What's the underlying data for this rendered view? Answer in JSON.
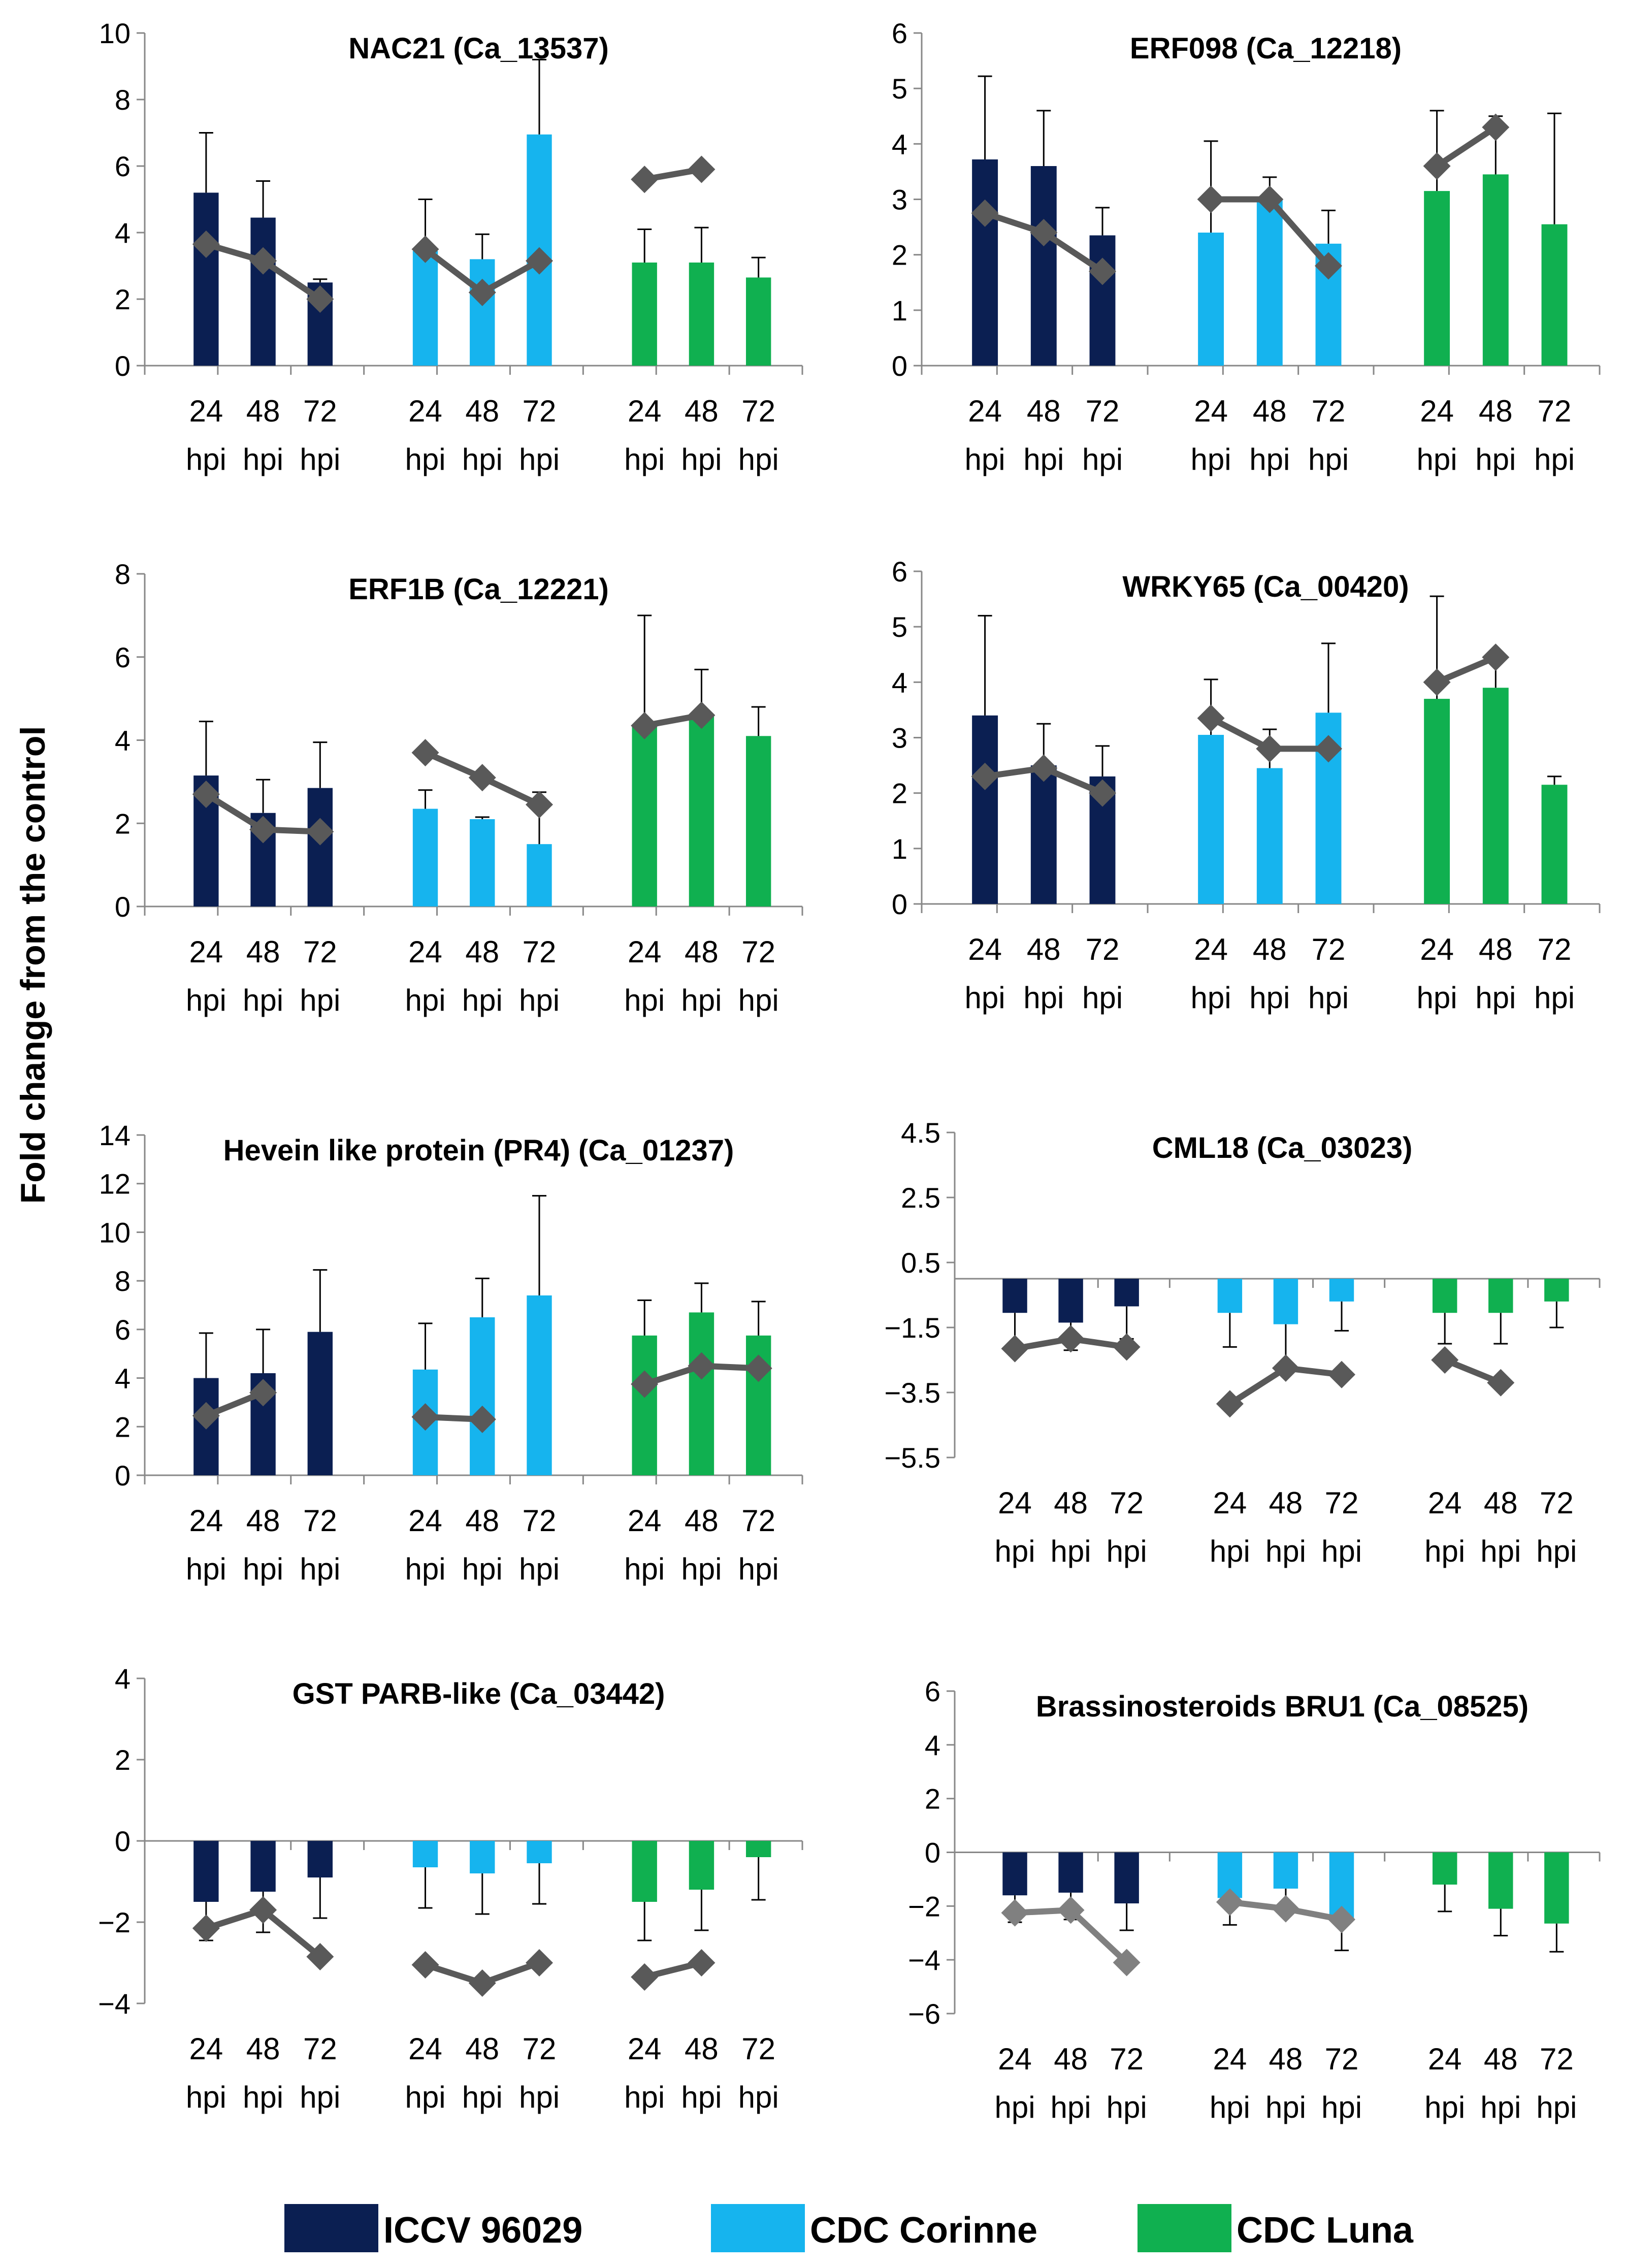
{
  "figure": {
    "ylabel": "Fold change from the control",
    "x_tick_top": "24|48|72",
    "x_tick_unit": "hpi",
    "colors": {
      "ICCV 96029": "#0b1f52",
      "CDC Corinne": "#16b4ee",
      "CDC Luna": "#10b050",
      "line": "#595959",
      "line_light": "#808080",
      "axis": "#888888"
    }
  },
  "legend": [
    {
      "name": "ICCV 96029",
      "color": "#0b1f52"
    },
    {
      "name": "CDC Corinne",
      "color": "#16b4ee"
    },
    {
      "name": "CDC Luna",
      "color": "#10b050"
    }
  ],
  "chart_data": [
    {
      "type": "bar",
      "title": "NAC21 (Ca_13537)",
      "yticks": [
        0,
        2,
        4,
        6,
        8,
        10
      ],
      "ylim": [
        0,
        10
      ],
      "categories": [
        "24 hpi",
        "48 hpi",
        "72 hpi"
      ],
      "groups": [
        "ICCV 96029",
        "CDC Corinne",
        "CDC Luna"
      ],
      "bars": [
        [
          5.2,
          4.45,
          2.5
        ],
        [
          3.45,
          3.2,
          6.95
        ],
        [
          3.1,
          3.1,
          2.65
        ]
      ],
      "errors": [
        [
          1.8,
          1.1,
          0.1
        ],
        [
          1.55,
          0.75,
          2.25
        ],
        [
          1.0,
          1.05,
          0.6
        ]
      ],
      "line": [
        [
          3.65,
          3.15,
          2.0
        ],
        [
          3.5,
          2.2,
          3.15
        ],
        [
          5.6,
          5.9,
          null
        ]
      ]
    },
    {
      "type": "bar",
      "title": "ERF098 (Ca_12218)",
      "yticks": [
        0,
        1,
        2,
        3,
        4,
        5,
        6
      ],
      "ylim": [
        0,
        6
      ],
      "categories": [
        "24 hpi",
        "48 hpi",
        "72 hpi"
      ],
      "groups": [
        "ICCV 96029",
        "CDC Corinne",
        "CDC Luna"
      ],
      "bars": [
        [
          3.72,
          3.6,
          2.35
        ],
        [
          2.4,
          3.0,
          2.2
        ],
        [
          3.15,
          3.45,
          2.55
        ]
      ],
      "errors": [
        [
          1.5,
          1.0,
          0.5
        ],
        [
          1.65,
          0.4,
          0.6
        ],
        [
          1.45,
          1.05,
          2.0
        ]
      ],
      "line": [
        [
          2.75,
          2.4,
          1.7
        ],
        [
          3.0,
          3.0,
          1.8
        ],
        [
          3.6,
          4.3,
          null
        ]
      ]
    },
    {
      "type": "bar",
      "title": "ERF1B (Ca_12221)",
      "yticks": [
        0,
        2,
        4,
        6,
        8
      ],
      "ylim": [
        0,
        8
      ],
      "categories": [
        "24 hpi",
        "48 hpi",
        "72 hpi"
      ],
      "groups": [
        "ICCV 96029",
        "CDC Corinne",
        "CDC Luna"
      ],
      "bars": [
        [
          3.15,
          2.25,
          2.85
        ],
        [
          2.35,
          2.1,
          1.5
        ],
        [
          4.35,
          4.6,
          4.1
        ]
      ],
      "errors": [
        [
          1.3,
          0.8,
          1.1
        ],
        [
          0.45,
          0.05,
          1.25
        ],
        [
          2.65,
          1.1,
          0.7
        ]
      ],
      "line": [
        [
          2.7,
          1.85,
          1.8
        ],
        [
          3.7,
          3.1,
          2.45
        ],
        [
          4.35,
          4.6,
          null
        ]
      ]
    },
    {
      "type": "bar",
      "title": "WRKY65 (Ca_00420)",
      "yticks": [
        0,
        1,
        2,
        3,
        4,
        5,
        6
      ],
      "ylim": [
        0,
        6
      ],
      "categories": [
        "24 hpi",
        "48 hpi",
        "72 hpi"
      ],
      "groups": [
        "ICCV 96029",
        "CDC Corinne",
        "CDC Luna"
      ],
      "bars": [
        [
          3.4,
          2.5,
          2.3
        ],
        [
          3.05,
          2.45,
          3.45
        ],
        [
          3.7,
          3.9,
          2.15
        ]
      ],
      "errors": [
        [
          1.8,
          0.75,
          0.55
        ],
        [
          1.0,
          0.7,
          1.25
        ],
        [
          1.85,
          0.55,
          0.15
        ]
      ],
      "line": [
        [
          2.3,
          2.45,
          2.0
        ],
        [
          3.35,
          2.8,
          2.8
        ],
        [
          4.0,
          4.45,
          null
        ]
      ]
    },
    {
      "type": "bar",
      "title": "Hevein like protein (PR4) (Ca_01237)",
      "yticks": [
        0,
        2,
        4,
        6,
        8,
        10,
        12,
        14
      ],
      "ylim": [
        0,
        14
      ],
      "categories": [
        "24 hpi",
        "48 hpi",
        "72 hpi"
      ],
      "groups": [
        "ICCV 96029",
        "CDC Corinne",
        "CDC Luna"
      ],
      "bars": [
        [
          4.0,
          4.2,
          5.9
        ],
        [
          4.35,
          6.5,
          7.4
        ],
        [
          5.75,
          6.7,
          5.75
        ]
      ],
      "errors": [
        [
          1.85,
          1.8,
          2.55
        ],
        [
          1.9,
          1.6,
          4.1
        ],
        [
          1.45,
          1.2,
          1.4
        ]
      ],
      "line": [
        [
          2.45,
          3.4,
          null
        ],
        [
          2.4,
          2.3,
          null
        ],
        [
          3.75,
          4.5,
          4.4
        ]
      ]
    },
    {
      "type": "bar",
      "title": "CML18 (Ca_03023)",
      "yticks": [
        4.5,
        2.5,
        0.5,
        -1.5,
        -3.5,
        -5.5
      ],
      "ylim": [
        -5.5,
        4.5
      ],
      "categories": [
        "24 hpi",
        "48 hpi",
        "72 hpi"
      ],
      "groups": [
        "ICCV 96029",
        "CDC Corinne",
        "CDC Luna"
      ],
      "bars": [
        [
          -1.05,
          -1.35,
          -0.85
        ],
        [
          -1.05,
          -1.4,
          -0.7
        ],
        [
          -1.05,
          -1.05,
          -0.7
        ]
      ],
      "errors": [
        [
          0.95,
          0.85,
          1.0
        ],
        [
          1.05,
          1.2,
          0.9
        ],
        [
          0.95,
          0.95,
          0.8
        ]
      ],
      "line": [
        [
          -2.15,
          -1.85,
          -2.1
        ],
        [
          -3.85,
          -2.75,
          -2.95
        ],
        [
          -2.5,
          -3.2,
          null
        ]
      ]
    },
    {
      "type": "bar",
      "title": "GST PARB-like (Ca_03442)",
      "yticks": [
        4,
        2,
        0,
        -2,
        -4
      ],
      "ylim": [
        -4,
        4
      ],
      "categories": [
        "24 hpi",
        "48 hpi",
        "72 hpi"
      ],
      "groups": [
        "ICCV 96029",
        "CDC Corinne",
        "CDC Luna"
      ],
      "bars": [
        [
          -1.5,
          -1.25,
          -0.9
        ],
        [
          -0.65,
          -0.8,
          -0.55
        ],
        [
          -1.5,
          -1.2,
          -0.4
        ]
      ],
      "errors": [
        [
          0.95,
          1.0,
          1.0
        ],
        [
          1.0,
          1.0,
          1.0
        ],
        [
          0.95,
          1.0,
          1.05
        ]
      ],
      "line": [
        [
          -2.15,
          -1.7,
          -2.85
        ],
        [
          -3.05,
          -3.5,
          -3.0
        ],
        [
          -3.35,
          -3.0,
          null
        ]
      ]
    },
    {
      "type": "bar",
      "title": "Brassinosteroids BRU1 (Ca_08525)",
      "yticks": [
        6,
        4,
        2,
        0,
        -2,
        -4,
        -6
      ],
      "ylim": [
        -6,
        6
      ],
      "categories": [
        "24 hpi",
        "48 hpi",
        "72 hpi"
      ],
      "groups": [
        "ICCV 96029",
        "CDC Corinne",
        "CDC Luna"
      ],
      "bars": [
        [
          -1.6,
          -1.5,
          -1.9
        ],
        [
          -1.7,
          -1.35,
          -2.55
        ],
        [
          -1.2,
          -2.1,
          -2.65
        ]
      ],
      "errors": [
        [
          1.0,
          1.0,
          1.0
        ],
        [
          1.0,
          0.95,
          1.1
        ],
        [
          1.0,
          1.0,
          1.05
        ]
      ],
      "line": [
        [
          -2.25,
          -2.15,
          -4.1
        ],
        [
          -1.85,
          -2.1,
          -2.5
        ],
        [
          null,
          null,
          null
        ]
      ],
      "line_style": "light"
    }
  ]
}
